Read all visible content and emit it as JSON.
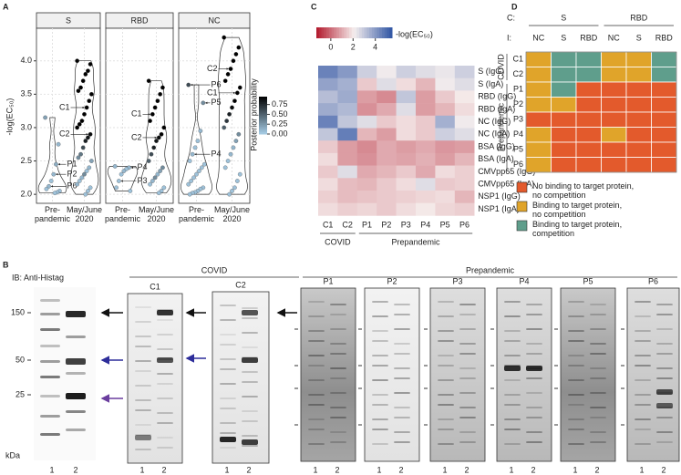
{
  "chart_data": [
    {
      "type": "violin",
      "label": "A",
      "y_label": "-log(EC₅₀)",
      "ylim": [
        1.92,
        4.42
      ],
      "yticks": [
        {
          "value": 2,
          "label": "2.0"
        },
        {
          "value": 2.5,
          "label": "2.5"
        },
        {
          "value": 3,
          "label": "3.0"
        },
        {
          "value": 3.5,
          "label": "3.5"
        },
        {
          "value": 4,
          "label": "4.0"
        }
      ],
      "grid": true,
      "categories": [
        "Pre-\npandemic",
        "May/June\n2020"
      ],
      "colorbar": {
        "title": "Posterior probability",
        "lim": [
          0,
          0.95
        ],
        "colors": [
          "#a7cde6",
          "#000000"
        ],
        "ticks": [
          {
            "value": 0,
            "label": "0.00"
          },
          {
            "value": 0.25,
            "label": "0.25"
          },
          {
            "value": 0.5,
            "label": "0.50"
          },
          {
            "value": 0.75,
            "label": "0.75"
          }
        ]
      },
      "facets": [
        {
          "title": "S",
          "series": [
            {
              "values": [
                3.15,
                2.75,
                2.45,
                2.3,
                2.2,
                2.12,
                2.08,
                2.05,
                2.03,
                2.02
              ],
              "probs": [
                0.2,
                0.1,
                0.15,
                0.1,
                0.05,
                0.1,
                0.05,
                0.05,
                0.05,
                0.05
              ],
              "annotations": [
                {
                  "text": "P1",
                  "value": 2.45
                },
                {
                  "text": "P2",
                  "value": 2.3
                },
                {
                  "text": "P6",
                  "value": 2.12
                }
              ]
            },
            {
              "values": [
                4.0,
                3.95,
                3.85,
                3.8,
                3.7,
                3.6,
                3.55,
                3.5,
                3.4,
                3.3,
                3.2,
                3.1,
                3.05,
                3.0,
                2.9,
                2.85,
                2.8,
                2.7,
                2.6,
                2.55,
                2.5,
                2.4,
                2.35,
                2.3,
                2.25,
                2.2,
                2.15,
                2.1,
                2.05,
                2.0
              ],
              "probs": [
                0.95,
                0.95,
                0.95,
                0.95,
                0.95,
                0.95,
                0.95,
                0.95,
                0.95,
                0.95,
                0.95,
                0.95,
                0.95,
                0.95,
                0.9,
                0.85,
                0.8,
                0.6,
                0.4,
                0.3,
                0.2,
                0.1,
                0.05,
                0.3,
                0.1,
                0.05,
                0.1,
                0.05,
                0.05,
                0.05
              ],
              "annotations": [
                {
                  "text": "C1",
                  "value": 3.3
                },
                {
                  "text": "C2",
                  "value": 2.9
                }
              ]
            }
          ]
        },
        {
          "title": "RBD",
          "series": [
            {
              "values": [
                2.42,
                2.4,
                2.38,
                2.35,
                2.3,
                2.2,
                2.1,
                2.05
              ],
              "probs": [
                0.1,
                0.1,
                0.05,
                0.1,
                0.05,
                0.05,
                0.05,
                0.05
              ],
              "annotations": [
                {
                  "text": "P4",
                  "value": 2.4
                },
                {
                  "text": "P3",
                  "value": 2.2
                }
              ]
            },
            {
              "values": [
                3.7,
                3.6,
                3.5,
                3.4,
                3.3,
                3.2,
                3.1,
                3.0,
                2.9,
                2.85,
                2.8,
                2.7,
                2.6,
                2.5,
                2.4,
                2.35,
                2.3,
                2.25,
                2.2,
                2.15,
                2.1,
                2.05,
                2.02
              ],
              "probs": [
                0.95,
                0.95,
                0.95,
                0.95,
                0.95,
                0.95,
                0.95,
                0.95,
                0.95,
                0.9,
                0.85,
                0.8,
                0.6,
                0.5,
                0.3,
                0.2,
                0.1,
                0.3,
                0.1,
                0.05,
                0.05,
                0.05,
                0.05
              ],
              "annotations": [
                {
                  "text": "C1",
                  "value": 3.2
                },
                {
                  "text": "C2",
                  "value": 2.85
                }
              ]
            }
          ]
        },
        {
          "title": "NC",
          "series": [
            {
              "values": [
                3.64,
                3.37,
                2.95,
                2.8,
                2.7,
                2.6,
                2.5,
                2.45,
                2.4,
                2.35,
                2.3,
                2.25,
                2.2,
                2.15,
                2.1,
                2.08,
                2.05,
                2.03,
                2.02,
                2.0
              ],
              "probs": [
                0.6,
                0.3,
                0.1,
                0.05,
                0.05,
                0.1,
                0.05,
                0.05,
                0.05,
                0.05,
                0.05,
                0.05,
                0.05,
                0.05,
                0.05,
                0.05,
                0.05,
                0.05,
                0.05,
                0.05
              ],
              "annotations": [
                {
                  "text": "P6",
                  "value": 3.64
                },
                {
                  "text": "P5",
                  "value": 3.37
                },
                {
                  "text": "P4",
                  "value": 2.6
                }
              ]
            },
            {
              "values": [
                4.35,
                4.2,
                4.1,
                4.0,
                3.88,
                3.8,
                3.7,
                3.6,
                3.52,
                3.4,
                3.3,
                3.2,
                3.1,
                3.0,
                2.9,
                2.8,
                2.7,
                2.6,
                2.5,
                2.4,
                2.3,
                2.2,
                2.1,
                2.05,
                2.0
              ],
              "probs": [
                0.95,
                0.95,
                0.95,
                0.95,
                0.95,
                0.95,
                0.95,
                0.95,
                0.95,
                0.95,
                0.9,
                0.8,
                0.7,
                0.5,
                0.3,
                0.2,
                0.1,
                0.1,
                0.05,
                0.05,
                0.05,
                0.05,
                0.05,
                0.05,
                0.05
              ],
              "annotations": [
                {
                  "text": "C2",
                  "value": 3.88
                },
                {
                  "text": "C1",
                  "value": 3.52
                }
              ]
            }
          ]
        }
      ]
    },
    {
      "type": "heatmap",
      "label": "C",
      "colorbar": {
        "title": "-log(EC₅₀)",
        "lim": [
          -1.3,
          5.5
        ],
        "ticks": [
          0,
          2,
          4
        ],
        "colors": [
          "#b2182b",
          "#f6efee",
          "#2f55a4"
        ]
      },
      "column_groups": [
        {
          "label": "COVID",
          "columns": [
            "C1",
            "C2"
          ]
        },
        {
          "label": "Prepandemic",
          "columns": [
            "P1",
            "P2",
            "P3",
            "P4",
            "P5",
            "P6"
          ]
        }
      ],
      "rows": [
        "S (IgG)",
        "S (IgA)",
        "RBD (IgG)",
        "RBD (IgA)",
        "NC (IgG)",
        "NC (IgA)",
        "BSA (IgG)",
        "BSA (IgA)",
        "CMVpp65 (IgG)",
        "CMVpp65 (IgA)",
        "NSP1 (IgG)",
        "NSP1 (IgA)"
      ],
      "values": [
        [
          4.5,
          4.0,
          2.8,
          2.2,
          2.8,
          2.5,
          2.3,
          2.8
        ],
        [
          3.8,
          3.5,
          1.5,
          2.5,
          1.8,
          1.2,
          2.2,
          2.5
        ],
        [
          3.2,
          3.6,
          0.8,
          0.5,
          3.0,
          0.8,
          1.5,
          2.0
        ],
        [
          3.6,
          3.3,
          0.6,
          1.0,
          2.5,
          0.8,
          1.2,
          1.8
        ],
        [
          4.5,
          3.0,
          2.5,
          1.5,
          1.8,
          1.5,
          3.5,
          2.2
        ],
        [
          3.0,
          4.6,
          1.2,
          0.8,
          1.8,
          1.5,
          2.8,
          2.5
        ],
        [
          1.5,
          0.8,
          0.5,
          1.0,
          0.8,
          1.0,
          0.7,
          0.8
        ],
        [
          1.8,
          0.8,
          0.6,
          1.0,
          0.9,
          1.1,
          0.8,
          1.2
        ],
        [
          1.5,
          2.5,
          1.0,
          1.2,
          1.5,
          1.0,
          1.8,
          1.6
        ],
        [
          1.8,
          1.3,
          1.2,
          1.5,
          1.8,
          2.5,
          1.5,
          1.6
        ],
        [
          1.6,
          1.3,
          1.4,
          1.5,
          1.6,
          1.7,
          1.8,
          1.2
        ],
        [
          1.8,
          1.6,
          1.7,
          1.5,
          1.8,
          2.0,
          1.7,
          1.6
        ]
      ]
    },
    {
      "type": "categorical_grid",
      "label": "D",
      "group_header": "C:",
      "column_header": "I:",
      "column_groups": [
        {
          "label": "S",
          "columns": [
            "NC",
            "S",
            "RBD"
          ]
        },
        {
          "label": "RBD",
          "columns": [
            "NC",
            "S",
            "RBD"
          ]
        }
      ],
      "row_groups": [
        {
          "label": "COVID",
          "rows": [
            "C1",
            "C2"
          ]
        },
        {
          "label": "Prepandemic",
          "rows": [
            "P1",
            "P2",
            "P3",
            "P4",
            "P5",
            "P6"
          ]
        }
      ],
      "cells": [
        [
          "#e0a42a",
          "#5f9e8c",
          "#5f9e8c",
          "#e0a42a",
          "#e0a42a",
          "#5f9e8c"
        ],
        [
          "#e0a42a",
          "#5f9e8c",
          "#5f9e8c",
          "#e0a42a",
          "#e0a42a",
          "#5f9e8c"
        ],
        [
          "#e0a42a",
          "#5f9e8c",
          "#e35a2c",
          "#e35a2c",
          "#e35a2c",
          "#e35a2c"
        ],
        [
          "#e0a42a",
          "#e0a42a",
          "#e35a2c",
          "#e35a2c",
          "#e35a2c",
          "#e35a2c"
        ],
        [
          "#e35a2c",
          "#e35a2c",
          "#e35a2c",
          "#e35a2c",
          "#e35a2c",
          "#e35a2c"
        ],
        [
          "#e0a42a",
          "#e35a2c",
          "#e35a2c",
          "#e0a42a",
          "#e35a2c",
          "#e35a2c"
        ],
        [
          "#e0a42a",
          "#e35a2c",
          "#e35a2c",
          "#e35a2c",
          "#e35a2c",
          "#e35a2c"
        ],
        [
          "#e0a42a",
          "#e35a2c",
          "#e35a2c",
          "#e35a2c",
          "#e35a2c",
          "#e35a2c"
        ]
      ],
      "legend": [
        {
          "label": "No binding to target protein,\nno competition",
          "color": "#e35a2c"
        },
        {
          "label": "Binding to target protein,\nno competition",
          "color": "#e0a42a"
        },
        {
          "label": "Binding to target protein,\ncompetition",
          "color": "#5f9e8c"
        }
      ]
    }
  ],
  "panel_b": {
    "label": "B",
    "ib_label": "IB: Anti-Histag",
    "markers": [
      "150",
      "50",
      "25"
    ],
    "unit": "kDa",
    "groups": [
      {
        "title": "COVID",
        "blots": [
          "C1",
          "C2"
        ]
      },
      {
        "title": "Prepandemic",
        "blots": [
          "P1",
          "P2",
          "P3",
          "P4",
          "P5",
          "P6"
        ]
      }
    ],
    "lanes": [
      "1",
      "2"
    ]
  }
}
